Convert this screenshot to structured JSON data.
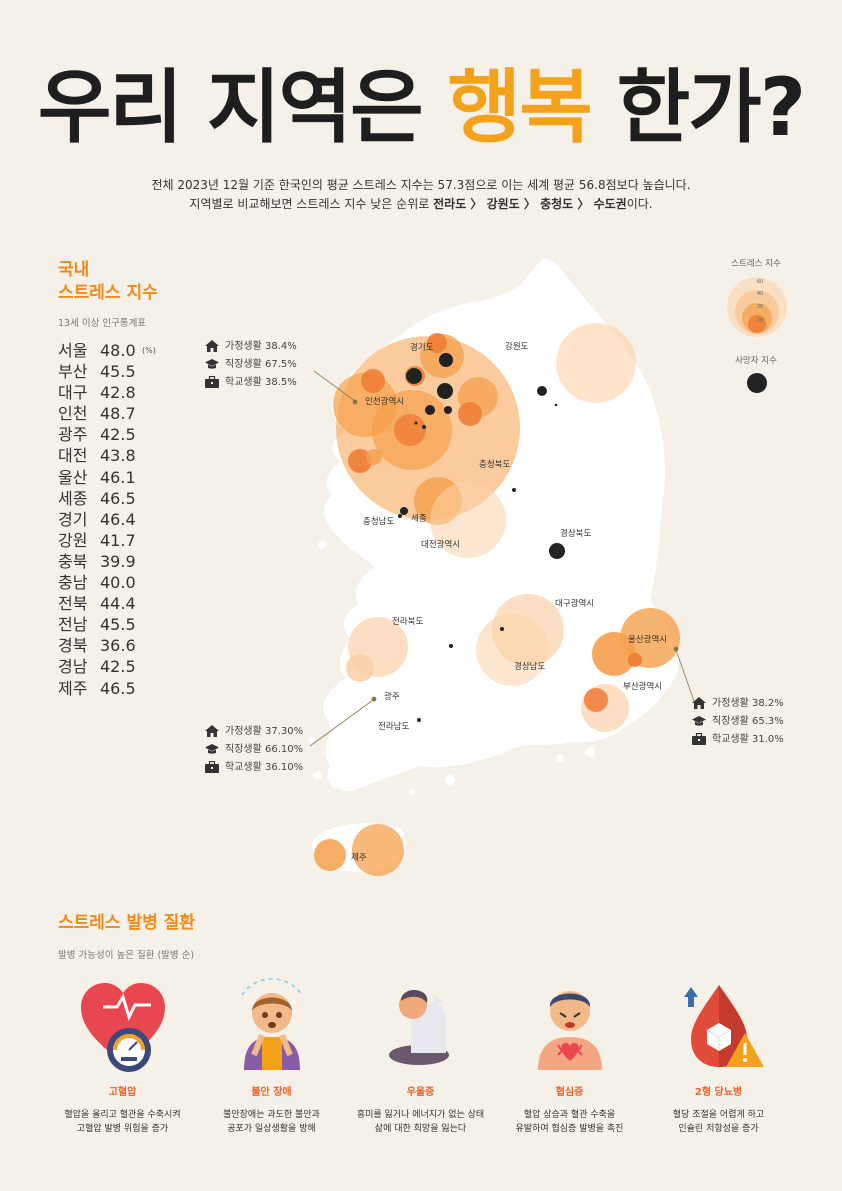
{
  "title": {
    "before": "우리 지역은 ",
    "highlight": "행복",
    "after": " 한가?"
  },
  "subtitle": {
    "line1": "전체 2023년 12월 기준 한국인의 평균 스트레스 지수는 57.3점으로 이는 세계 평균 56.8점보다 높습니다.",
    "line2_prefix": "지역별로 비교해보면 스트레스 지수 낮은 순위로 ",
    "rank1": "전라도",
    "rank2": "강원도",
    "rank3": "충청도",
    "rank4": "수도권",
    "sep": " 〉 ",
    "line2_suffix": "이다."
  },
  "stress_section": {
    "title_line1": "국내",
    "title_line2": "스트레스 지수",
    "note": "13세 이상 인구통계표",
    "unit": "(%)"
  },
  "stress": [
    {
      "region": "서울",
      "value": "48.0"
    },
    {
      "region": "부산",
      "value": "45.5"
    },
    {
      "region": "대구",
      "value": "42.8"
    },
    {
      "region": "인천",
      "value": "48.7"
    },
    {
      "region": "광주",
      "value": "42.5"
    },
    {
      "region": "대전",
      "value": "43.8"
    },
    {
      "region": "울산",
      "value": "46.1"
    },
    {
      "region": "세종",
      "value": "46.5"
    },
    {
      "region": "경기",
      "value": "46.4"
    },
    {
      "region": "강원",
      "value": "41.7"
    },
    {
      "region": "충북",
      "value": "39.9"
    },
    {
      "region": "충남",
      "value": "40.0"
    },
    {
      "region": "전북",
      "value": "44.4"
    },
    {
      "region": "전남",
      "value": "45.5"
    },
    {
      "region": "경북",
      "value": "36.6"
    },
    {
      "region": "경남",
      "value": "42.5"
    },
    {
      "region": "제주",
      "value": "46.5"
    }
  ],
  "legend": {
    "stress_label": "스트레스 지수",
    "scale": [
      "60",
      "40",
      "30",
      "20"
    ],
    "death_label": "사망자 지수"
  },
  "map_labels": [
    "경기도",
    "강원도",
    "인천광역시",
    "충청북도",
    "충청남도",
    "세종",
    "대전광역시",
    "경상북도",
    "대구광역시",
    "전라북도",
    "울산광역시",
    "경상남도",
    "부산광역시",
    "광주",
    "전라남도",
    "제주"
  ],
  "life_stats": {
    "capital": [
      {
        "icon": "house-icon",
        "label": "가정생활",
        "value": "38.4%"
      },
      {
        "icon": "graduation-cap-icon",
        "label": "직장생활",
        "value": "67.5%"
      },
      {
        "icon": "briefcase-icon",
        "label": "학교생활",
        "value": "38.5%"
      }
    ],
    "honam": [
      {
        "icon": "house-icon",
        "label": "가정생활",
        "value": "37.30%"
      },
      {
        "icon": "graduation-cap-icon",
        "label": "직장생활",
        "value": "66.10%"
      },
      {
        "icon": "briefcase-icon",
        "label": "학교생활",
        "value": "36.10%"
      }
    ],
    "yeongnam": [
      {
        "icon": "house-icon",
        "label": "가정생활",
        "value": "38.2%"
      },
      {
        "icon": "graduation-cap-icon",
        "label": "직장생활",
        "value": "65.3%"
      },
      {
        "icon": "briefcase-icon",
        "label": "학교생활",
        "value": "31.0%"
      }
    ]
  },
  "disease_section": {
    "title": "스트레스 발병 질환",
    "note": "발병 가능성이 높은 질환 (발병 순)"
  },
  "diseases": [
    {
      "icon": "heart-gauge-icon",
      "name": "고혈압",
      "desc1": "혈압을 올리고 혈관을 수축시켜",
      "desc2": "고혈압 발병 위험을 증가"
    },
    {
      "icon": "anxious-person-icon",
      "name": "불안 장애",
      "desc1": "불안장애는 과도한 불안과",
      "desc2": "공포가 일상생활을 방해"
    },
    {
      "icon": "depressed-person-icon",
      "name": "우울증",
      "desc1": "흥미를 잃거나 에너지가 없는 상태",
      "desc2": "삶에 대한 희망을 잃는다"
    },
    {
      "icon": "chest-pain-person-icon",
      "name": "협심증",
      "desc1": "혈압 상승과 혈관 수축을",
      "desc2": "유발하여 협심증 발병을 촉진"
    },
    {
      "icon": "blood-sugar-icon",
      "name": "2형 당뇨병",
      "desc1": "혈당 조절을 어렵게 하고",
      "desc2": "인슐린 저항성을 증가"
    }
  ],
  "colors": {
    "accent": "#f4a11c",
    "section_title": "#f08a1c",
    "bubble": "#f5a04c",
    "dark": "#222222",
    "background": "#f5f1e8"
  }
}
